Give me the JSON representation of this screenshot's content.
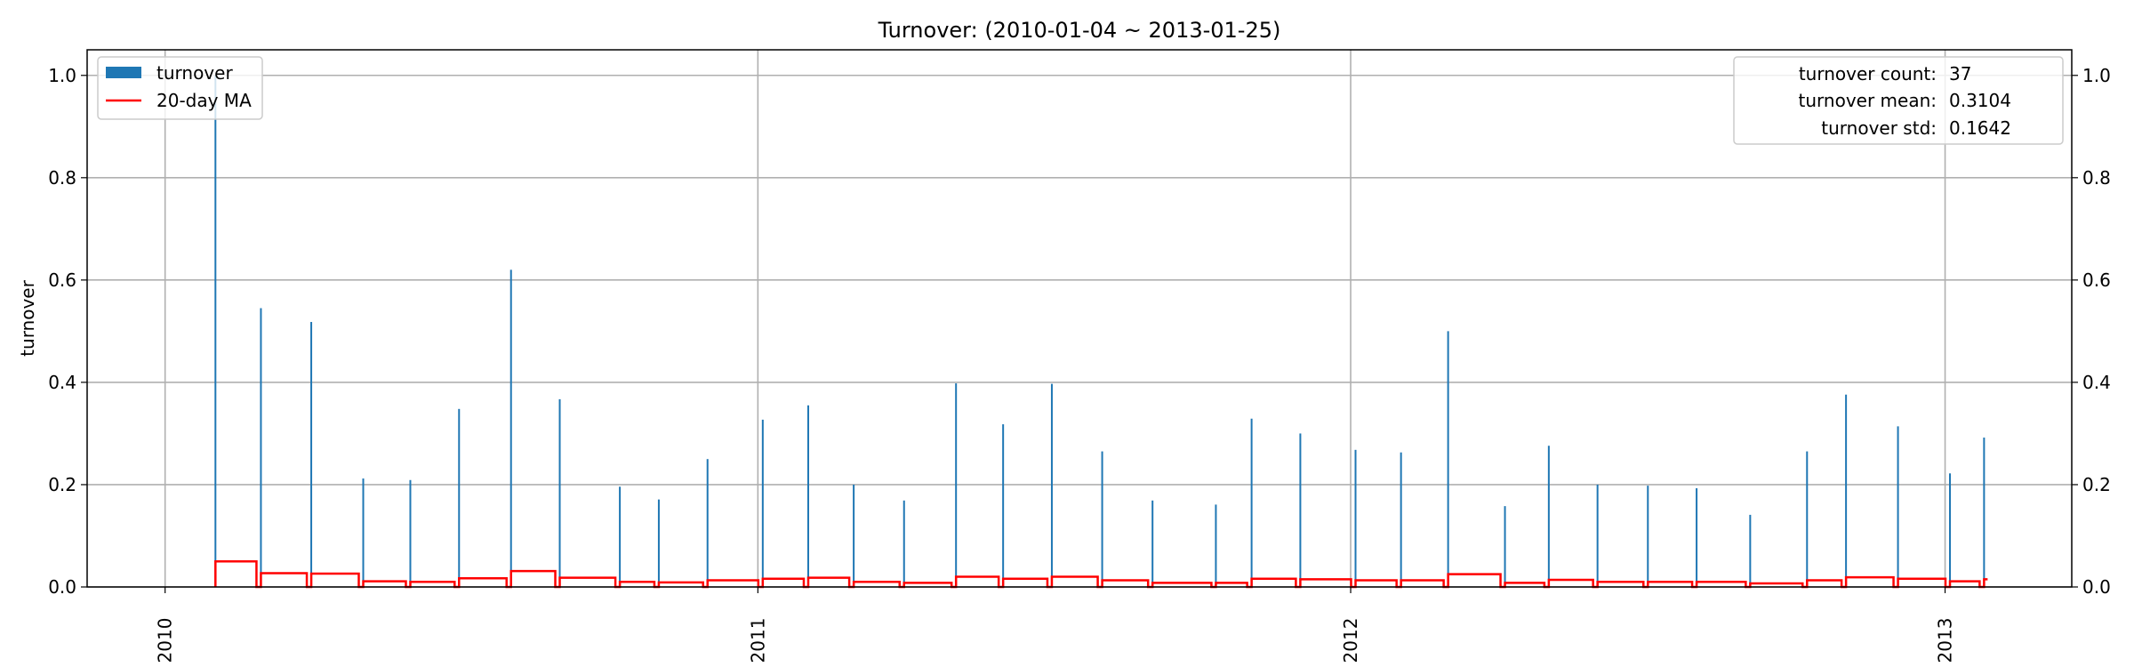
{
  "chart_data": {
    "type": "bar",
    "title": "Turnover: (2010-01-04 ~ 2013-01-25)",
    "xlabel": "",
    "ylabel": "turnover",
    "ylim": [
      0,
      1.05
    ],
    "y_ticks": [
      "0.0",
      "0.2",
      "0.4",
      "0.6",
      "0.8",
      "1.0"
    ],
    "y2_ticks": [
      "0.0",
      "0.2",
      "0.4",
      "0.6",
      "0.8",
      "1.0"
    ],
    "x_ticks": [
      "2010",
      "2011",
      "2012",
      "2013"
    ],
    "xlim": [
      "2009-11-14",
      "2013-03-20"
    ],
    "grid": true,
    "legend": {
      "placement": "top-left",
      "entries": [
        "turnover",
        "20-day MA"
      ]
    },
    "stats_box": {
      "placement": "top-right",
      "rows": [
        {
          "label": "turnover count:",
          "value": "37"
        },
        {
          "label": "turnover mean:",
          "value": "0.3104"
        },
        {
          "label": "turnover std:",
          "value": "0.1642"
        }
      ]
    },
    "colors": {
      "bars": "#1f77b4",
      "ma": "#ff0000",
      "grid": "#b0b0b0"
    },
    "series": [
      {
        "name": "turnover",
        "x": [
          "2010-02-01",
          "2010-03-01",
          "2010-04-01",
          "2010-05-03",
          "2010-06-01",
          "2010-07-01",
          "2010-08-02",
          "2010-09-01",
          "2010-10-08",
          "2010-11-01",
          "2010-12-01",
          "2011-01-04",
          "2011-02-01",
          "2011-03-01",
          "2011-04-01",
          "2011-05-03",
          "2011-06-01",
          "2011-07-01",
          "2011-08-01",
          "2011-09-01",
          "2011-10-10",
          "2011-11-01",
          "2011-12-01",
          "2012-01-04",
          "2012-02-01",
          "2012-03-01",
          "2012-04-05",
          "2012-05-02",
          "2012-06-01",
          "2012-07-02",
          "2012-08-01",
          "2012-09-03",
          "2012-10-08",
          "2012-11-01",
          "2012-12-03",
          "2013-01-04",
          "2013-01-25"
        ],
        "values": [
          1.0,
          0.545,
          0.518,
          0.212,
          0.209,
          0.348,
          0.62,
          0.367,
          0.196,
          0.171,
          0.25,
          0.327,
          0.355,
          0.2,
          0.169,
          0.398,
          0.318,
          0.397,
          0.265,
          0.169,
          0.161,
          0.329,
          0.3,
          0.268,
          0.263,
          0.5,
          0.158,
          0.276,
          0.2,
          0.198,
          0.193,
          0.141,
          0.265,
          0.376,
          0.314,
          0.222,
          0.292
        ]
      },
      {
        "name": "20-day MA",
        "x": [
          "2010-02-01",
          "2010-03-01",
          "2010-04-01",
          "2010-05-03",
          "2010-06-01",
          "2010-07-01",
          "2010-08-02",
          "2010-09-01",
          "2010-10-08",
          "2010-11-01",
          "2010-12-01",
          "2011-01-04",
          "2011-02-01",
          "2011-03-01",
          "2011-04-01",
          "2011-05-03",
          "2011-06-01",
          "2011-07-01",
          "2011-08-01",
          "2011-09-01",
          "2011-10-10",
          "2011-11-01",
          "2011-12-01",
          "2012-01-04",
          "2012-02-01",
          "2012-03-01",
          "2012-04-05",
          "2012-05-02",
          "2012-06-01",
          "2012-07-02",
          "2012-08-01",
          "2012-09-03",
          "2012-10-08",
          "2012-11-01",
          "2012-12-03",
          "2013-01-04",
          "2013-01-25"
        ],
        "values": [
          0.05,
          0.027,
          0.026,
          0.011,
          0.01,
          0.017,
          0.031,
          0.018,
          0.01,
          0.009,
          0.013,
          0.016,
          0.018,
          0.01,
          0.008,
          0.02,
          0.016,
          0.02,
          0.013,
          0.008,
          0.008,
          0.016,
          0.015,
          0.013,
          0.013,
          0.025,
          0.008,
          0.014,
          0.01,
          0.01,
          0.01,
          0.007,
          0.013,
          0.019,
          0.016,
          0.011,
          0.015
        ]
      }
    ]
  }
}
